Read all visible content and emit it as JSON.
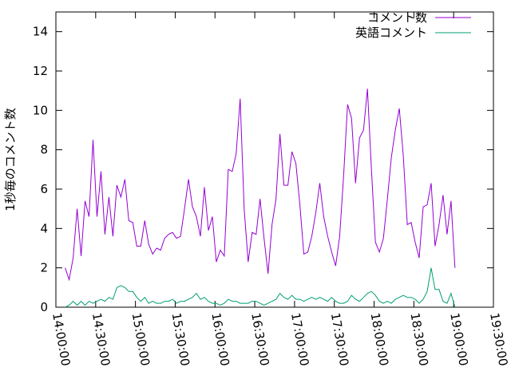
{
  "chart_data": {
    "type": "line",
    "ylabel": "1秒毎のコメント数",
    "x": [
      "14:07:00",
      "14:10:00",
      "14:13:00",
      "14:16:00",
      "14:19:00",
      "14:22:00",
      "14:25:00",
      "14:28:00",
      "14:31:00",
      "14:34:00",
      "14:37:00",
      "14:40:00",
      "14:43:00",
      "14:46:00",
      "14:49:00",
      "14:52:00",
      "14:55:00",
      "14:58:00",
      "15:01:00",
      "15:04:00",
      "15:07:00",
      "15:10:00",
      "15:13:00",
      "15:16:00",
      "15:19:00",
      "15:22:00",
      "15:25:00",
      "15:28:00",
      "15:31:00",
      "15:34:00",
      "15:37:00",
      "15:40:00",
      "15:43:00",
      "15:46:00",
      "15:49:00",
      "15:52:00",
      "15:55:00",
      "15:58:00",
      "16:01:00",
      "16:04:00",
      "16:07:00",
      "16:10:00",
      "16:13:00",
      "16:16:00",
      "16:19:00",
      "16:22:00",
      "16:25:00",
      "16:28:00",
      "16:31:00",
      "16:34:00",
      "16:37:00",
      "16:40:00",
      "16:43:00",
      "16:46:00",
      "16:49:00",
      "16:52:00",
      "16:55:00",
      "16:58:00",
      "17:01:00",
      "17:04:00",
      "17:07:00",
      "17:10:00",
      "17:13:00",
      "17:16:00",
      "17:19:00",
      "17:22:00",
      "17:25:00",
      "17:28:00",
      "17:31:00",
      "17:34:00",
      "17:37:00",
      "17:40:00",
      "17:43:00",
      "17:46:00",
      "17:49:00",
      "17:52:00",
      "17:55:00",
      "17:58:00",
      "18:01:00",
      "18:04:00",
      "18:07:00",
      "18:10:00",
      "18:13:00",
      "18:16:00",
      "18:19:00",
      "18:22:00",
      "18:25:00",
      "18:28:00",
      "18:31:00",
      "18:34:00",
      "18:37:00",
      "18:40:00",
      "18:43:00",
      "18:46:00",
      "18:49:00",
      "18:52:00",
      "18:55:00",
      "18:58:00",
      "19:01:00"
    ],
    "series": [
      {
        "name": "コメント数",
        "color": "#9400d3",
        "values": [
          2.0,
          1.4,
          2.5,
          5.0,
          2.6,
          5.4,
          4.6,
          8.5,
          4.6,
          6.9,
          3.7,
          5.6,
          3.6,
          6.2,
          5.6,
          6.5,
          4.4,
          4.3,
          3.1,
          3.1,
          4.4,
          3.2,
          2.7,
          3.0,
          2.9,
          3.5,
          3.7,
          3.8,
          3.5,
          3.6,
          5.0,
          6.5,
          5.1,
          4.6,
          3.6,
          6.1,
          3.9,
          4.6,
          2.3,
          2.9,
          2.6,
          7.0,
          6.9,
          7.8,
          10.6,
          5.0,
          2.3,
          3.8,
          3.7,
          5.5,
          3.5,
          1.7,
          4.2,
          5.5,
          8.8,
          6.2,
          6.2,
          7.9,
          7.3,
          5.2,
          2.7,
          2.8,
          3.6,
          4.8,
          6.3,
          4.6,
          3.6,
          2.8,
          2.1,
          3.6,
          6.7,
          10.3,
          9.6,
          6.3,
          8.6,
          9.0,
          11.1,
          7.0,
          3.3,
          2.8,
          3.5,
          5.5,
          7.6,
          9.0,
          10.1,
          7.7,
          4.2,
          4.3,
          3.3,
          2.5,
          5.1,
          5.2,
          6.3,
          3.1,
          4.2,
          5.7,
          3.7,
          5.4,
          2.0
        ]
      },
      {
        "name": "英語コメント",
        "color": "#009e73",
        "values": [
          0.0,
          0.1,
          0.3,
          0.1,
          0.3,
          0.1,
          0.3,
          0.2,
          0.3,
          0.4,
          0.3,
          0.5,
          0.4,
          1.0,
          1.1,
          1.0,
          0.8,
          0.8,
          0.5,
          0.3,
          0.5,
          0.2,
          0.3,
          0.2,
          0.2,
          0.3,
          0.3,
          0.4,
          0.2,
          0.3,
          0.3,
          0.4,
          0.5,
          0.7,
          0.4,
          0.5,
          0.3,
          0.2,
          0.2,
          0.1,
          0.2,
          0.4,
          0.3,
          0.3,
          0.2,
          0.2,
          0.2,
          0.3,
          0.3,
          0.2,
          0.1,
          0.2,
          0.3,
          0.4,
          0.7,
          0.5,
          0.4,
          0.6,
          0.4,
          0.4,
          0.3,
          0.4,
          0.5,
          0.4,
          0.5,
          0.4,
          0.3,
          0.5,
          0.3,
          0.2,
          0.2,
          0.3,
          0.6,
          0.4,
          0.3,
          0.5,
          0.7,
          0.8,
          0.6,
          0.3,
          0.2,
          0.3,
          0.2,
          0.4,
          0.5,
          0.6,
          0.5,
          0.5,
          0.4,
          0.2,
          0.4,
          0.8,
          2.0,
          0.9,
          0.9,
          0.3,
          0.2,
          0.7,
          0.0
        ]
      }
    ],
    "xlim": [
      "14:00:00",
      "19:30:00"
    ],
    "xticks": [
      "14:00:00",
      "14:30:00",
      "15:00:00",
      "15:30:00",
      "16:00:00",
      "16:30:00",
      "17:00:00",
      "17:30:00",
      "18:00:00",
      "18:30:00",
      "19:00:00",
      "19:30:00"
    ],
    "ylim": [
      0,
      15
    ],
    "yticks": [
      0,
      2,
      4,
      6,
      8,
      10,
      12,
      14
    ],
    "legend": "top-right"
  }
}
